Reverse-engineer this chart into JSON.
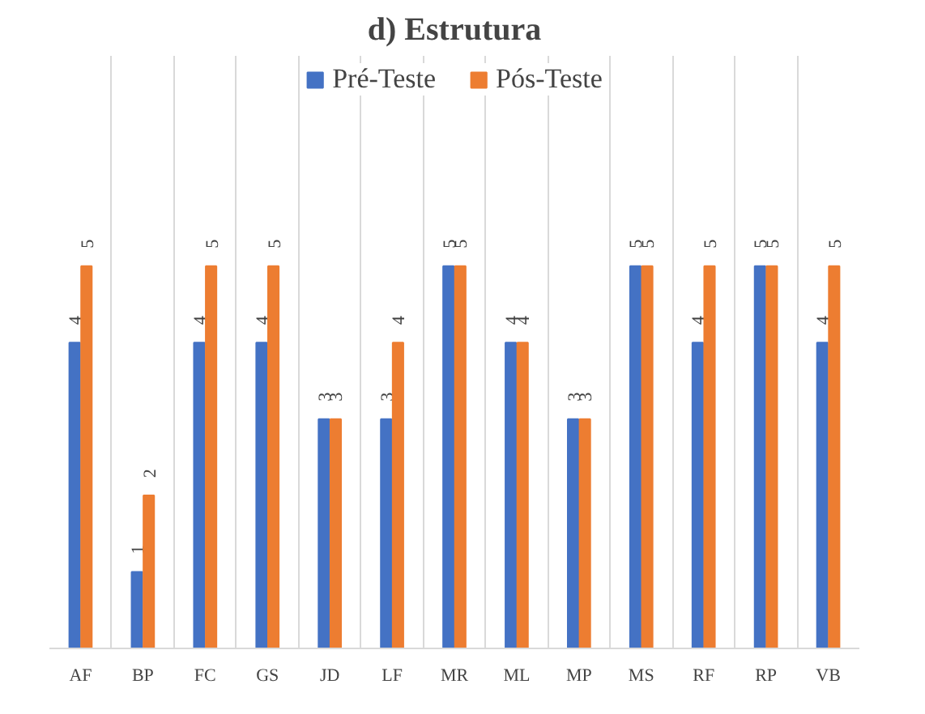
{
  "chart_data": {
    "type": "bar",
    "title": "d) Estrutura",
    "categories": [
      "AF",
      "BP",
      "FC",
      "GS",
      "JD",
      "LF",
      "MR",
      "ML",
      "MP",
      "MS",
      "RF",
      "RP",
      "VB"
    ],
    "series": [
      {
        "name": "Pré-Teste",
        "color": "#4472c4",
        "values": [
          4,
          1,
          4,
          4,
          3,
          3,
          5,
          4,
          3,
          5,
          4,
          5,
          4
        ]
      },
      {
        "name": "Pós-Teste",
        "color": "#ed7d31",
        "values": [
          5,
          2,
          5,
          5,
          3,
          4,
          5,
          4,
          3,
          5,
          5,
          5,
          5
        ]
      }
    ],
    "data_labels": true,
    "grid": "x",
    "legend": "top"
  }
}
